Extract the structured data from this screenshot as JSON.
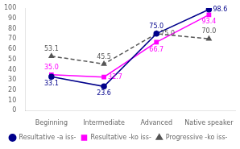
{
  "chart_data": {
    "type": "line",
    "categories": [
      "Beginning",
      "Intermediate",
      "Advanced",
      "Native speaker"
    ],
    "series": [
      {
        "name": "Resultative -a iss-",
        "color": "#00008B",
        "marker": "circle",
        "line_style": "solid",
        "values": [
          33.1,
          23.6,
          75.0,
          98.6
        ],
        "value_labels": [
          "33.1",
          "23.6",
          "75.0",
          "98.6"
        ]
      },
      {
        "name": "Resultative -ko iss-",
        "color": "#FF00FF",
        "marker": "square",
        "line_style": "solid",
        "values": [
          35.0,
          32.7,
          66.7,
          93.4
        ],
        "value_labels": [
          "35.0",
          "32.7",
          "66.7",
          "93.4"
        ]
      },
      {
        "name": "Progressive -ko iss-",
        "color": "#555555",
        "marker": "triangle",
        "line_style": "dashed",
        "values": [
          53.1,
          45.5,
          75.0,
          70.0
        ],
        "value_labels": [
          "53.1",
          "45.5",
          "75.0",
          "70.0"
        ]
      }
    ],
    "ylim": [
      0,
      100
    ],
    "yticks": [
      0,
      10,
      20,
      30,
      40,
      50,
      60,
      70,
      80,
      90,
      100
    ],
    "grid": false,
    "legend": "bottom",
    "data_labels": true
  }
}
